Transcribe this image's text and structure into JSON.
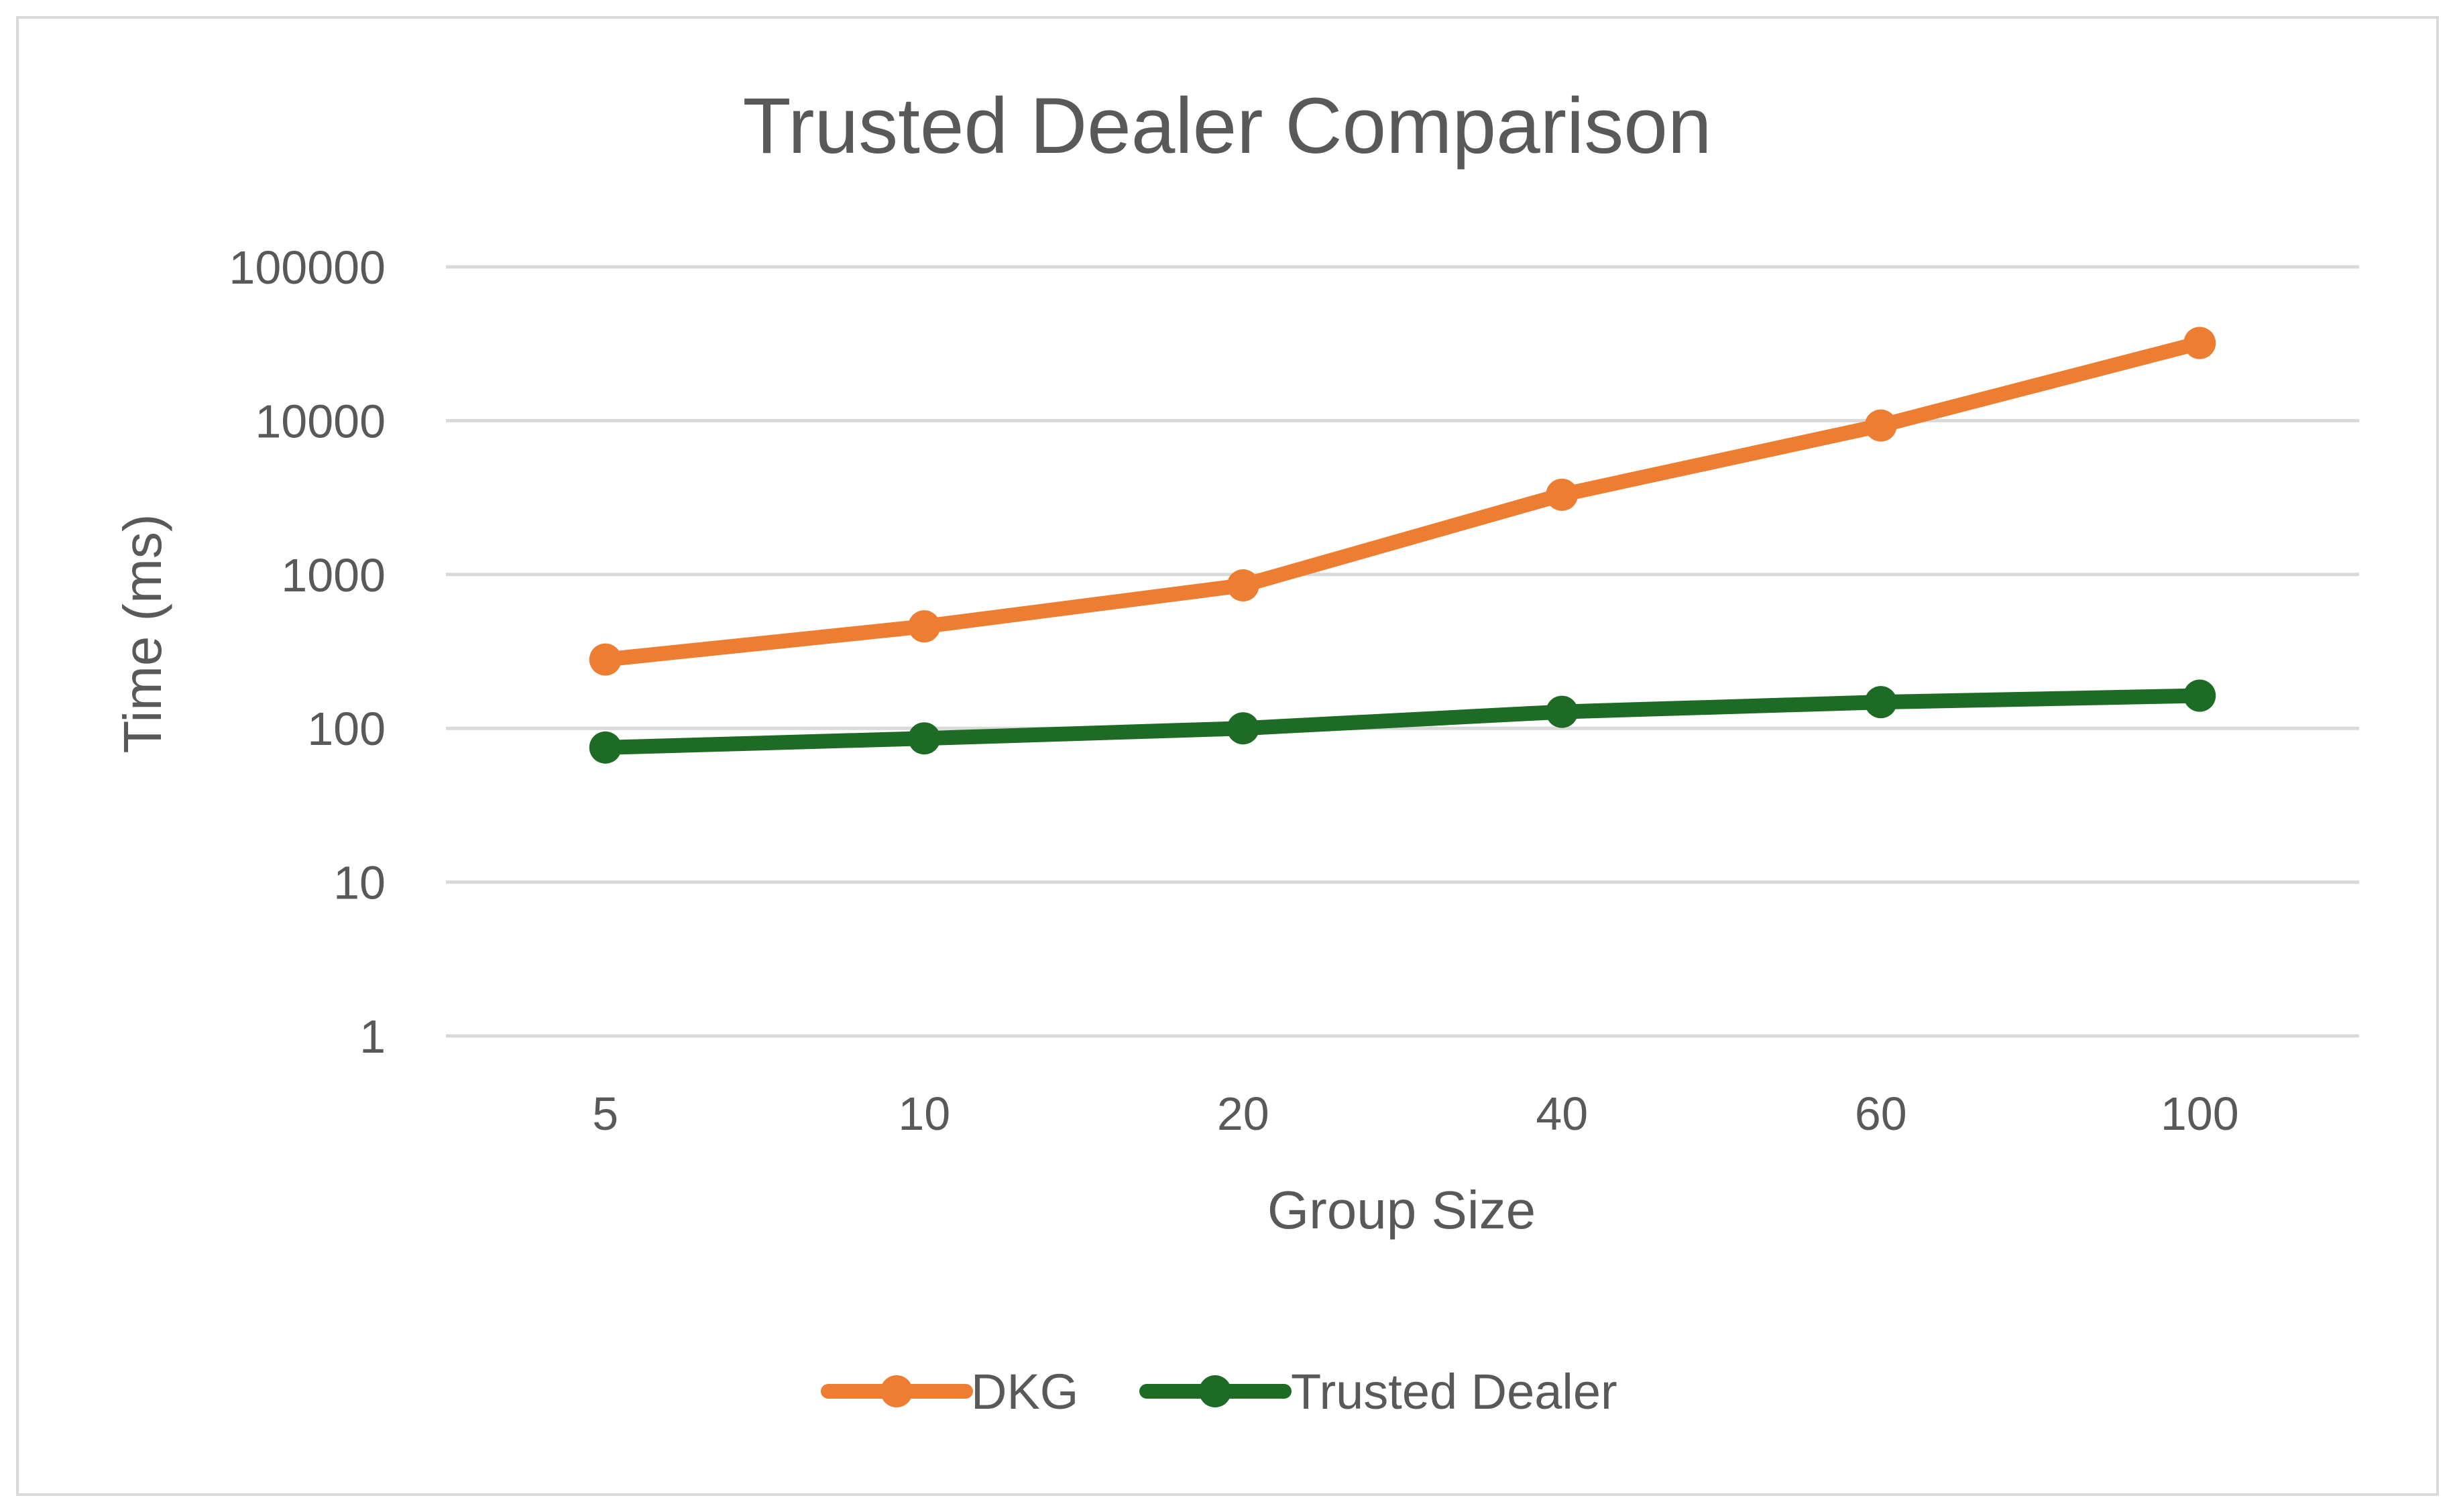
{
  "chart_data": {
    "type": "line",
    "title": "Trusted Dealer Comparison",
    "xlabel": "Group Size",
    "ylabel": "Time (ms)",
    "y_scale": "log",
    "ylim": [
      1,
      100000
    ],
    "y_ticks": [
      "1",
      "10",
      "100",
      "1000",
      "10000",
      "100000"
    ],
    "categories": [
      "5",
      "10",
      "20",
      "40",
      "60",
      "100"
    ],
    "grid": true,
    "legend_position": "bottom",
    "series": [
      {
        "name": "DKG",
        "color": "#ED7D31",
        "values": [
          280,
          460,
          850,
          3300,
          9300,
          32000
        ]
      },
      {
        "name": "Trusted Dealer",
        "color": "#1E6B25",
        "values": [
          75,
          86,
          100,
          128,
          148,
          163
        ]
      }
    ]
  }
}
